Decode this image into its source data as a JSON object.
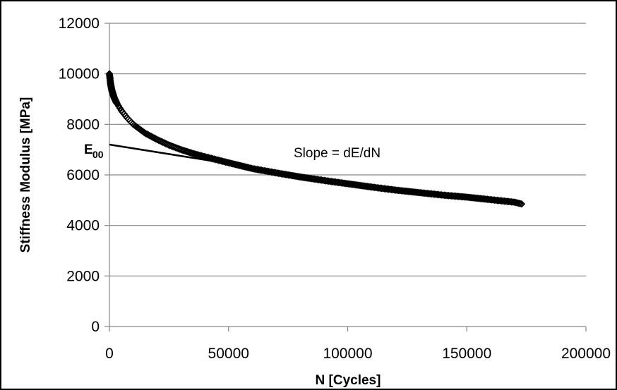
{
  "chart_data": {
    "type": "scatter",
    "title": "",
    "xlabel": "N [Cycles]",
    "ylabel": "Stiffness Modulus [MPa]",
    "xlim": [
      0,
      200000
    ],
    "ylim": [
      0,
      12000
    ],
    "x_ticks": [
      "0",
      "50000",
      "100000",
      "150000",
      "200000"
    ],
    "y_ticks": [
      "0",
      "2000",
      "4000",
      "6000",
      "8000",
      "10000",
      "12000"
    ],
    "grid": "horizontal",
    "legend": "none",
    "series": [
      {
        "marker": "diamond-outline",
        "color": "#000000",
        "x": [
          0,
          500,
          1000,
          2000,
          3000,
          5000,
          7500,
          10000,
          15000,
          20000,
          25000,
          30000,
          35000,
          40000,
          50000,
          60000,
          70000,
          80000,
          90000,
          100000,
          110000,
          120000,
          130000,
          140000,
          150000,
          160000,
          170000,
          173000
        ],
        "y": [
          10000,
          9600,
          9350,
          9050,
          8850,
          8550,
          8250,
          8000,
          7650,
          7400,
          7180,
          7000,
          6850,
          6720,
          6480,
          6250,
          6080,
          5920,
          5780,
          5650,
          5520,
          5400,
          5300,
          5200,
          5120,
          5020,
          4920,
          4850
        ]
      }
    ],
    "tangent_line": {
      "x": [
        0,
        50000
      ],
      "y": [
        7200,
        6450
      ]
    },
    "annotations": {
      "e00_main": "E",
      "e00_sub": "00",
      "slope": "Slope = dE/dN"
    }
  }
}
